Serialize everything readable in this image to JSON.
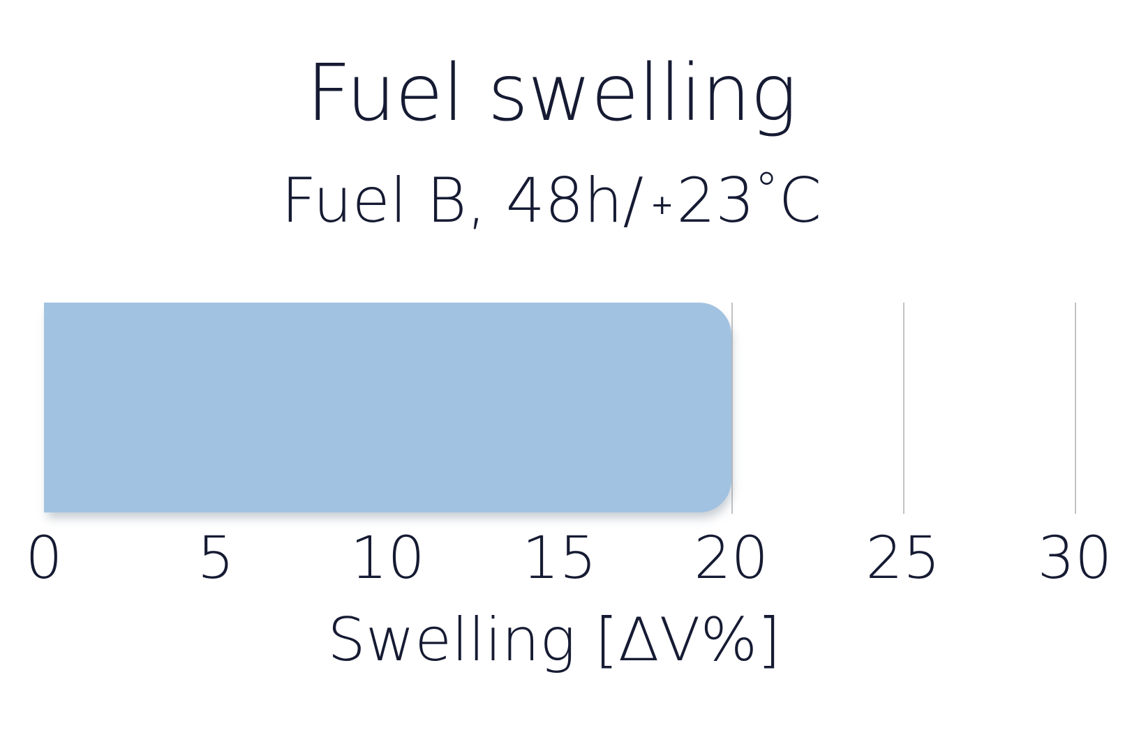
{
  "page": {
    "background_color": "#ffffff"
  },
  "chart": {
    "title": "Fuel swelling",
    "subtitle": {
      "full": "Fuel B, 48h/+23°C",
      "prefix": "Fuel B, 48h/",
      "plus": "+",
      "temp": "23",
      "degree": "°",
      "unit": "C"
    },
    "xlabel": "Swelling [ΔV%]",
    "colors": {
      "bar": "#a2c2e1",
      "text": "#161b33",
      "gridline": "#c2c2c2",
      "background": "#ffffff"
    }
  },
  "chart_data": {
    "type": "bar",
    "orientation": "horizontal",
    "title": "Fuel swelling",
    "subtitle": "Fuel B, 48h/+23°C",
    "categories": [
      "Fuel B"
    ],
    "series": [
      {
        "name": "Swelling",
        "values": [
          20
        ]
      }
    ],
    "values": [
      20
    ],
    "xlabel": "Swelling [ΔV%]",
    "ylabel": "",
    "xlim": [
      0,
      30
    ],
    "xticks": [
      0,
      5,
      10,
      15,
      20,
      25,
      30
    ],
    "xtick_labels": [
      "0",
      "5",
      "10",
      "15",
      "20",
      "25",
      "30"
    ],
    "gridlines_visible_at": [
      20,
      25,
      30
    ],
    "grid": "vertical",
    "legend": "none",
    "bar_color": "#a2c2e1"
  }
}
